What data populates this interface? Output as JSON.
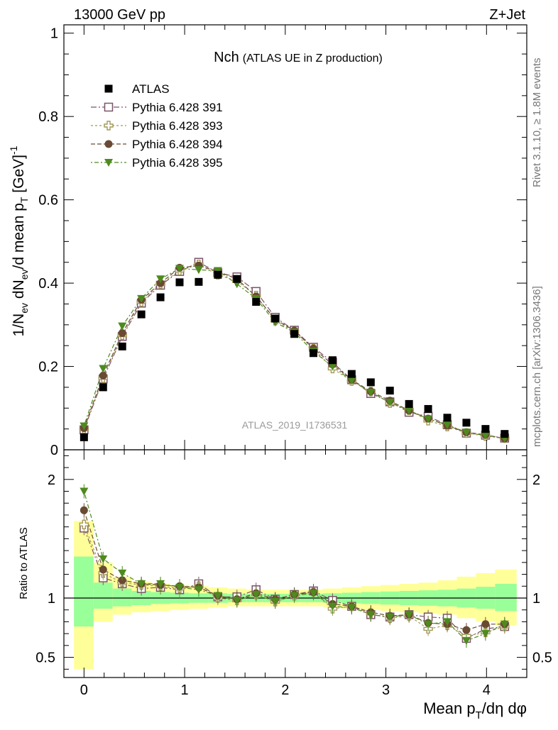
{
  "header": {
    "energy": "13000 GeV pp",
    "process": "Z+Jet",
    "side_rivet": "Rivet 3.1.10, ≥ 1.8M events",
    "side_site": "mcplots.cern.ch [arXiv:1306.3436]"
  },
  "plot_title": {
    "main": "Nch",
    "sub": "(ATLAS UE in Z production)"
  },
  "watermark": "ATLAS_2019_I1736531",
  "colors": {
    "atlas": "#000000",
    "s391": "#7a5468",
    "s393": "#a49858",
    "s394": "#6a4a32",
    "s395": "#4e8a1e",
    "band_yellow": "#ffff99",
    "band_green": "#99ff99"
  },
  "chart_data": [
    {
      "type": "scatter",
      "panel": "main",
      "ylabel": "1/Nev dNev/d mean pT [GeV]^-1",
      "xlim": [
        -0.2,
        4.4
      ],
      "ylim": [
        0,
        1.02
      ],
      "yticks": [
        "0",
        "0.2",
        "0.4",
        "0.6",
        "0.8",
        "1"
      ],
      "x": [
        0,
        0.19,
        0.38,
        0.57,
        0.76,
        0.95,
        1.14,
        1.33,
        1.52,
        1.71,
        1.9,
        2.09,
        2.28,
        2.47,
        2.66,
        2.85,
        3.04,
        3.23,
        3.42,
        3.61,
        3.8,
        3.99,
        4.18
      ],
      "legend": [
        {
          "key": "atlas",
          "name": "ATLAS",
          "marker": "filled-square"
        },
        {
          "key": "s391",
          "name": "Pythia 6.428 391",
          "marker": "open-square"
        },
        {
          "key": "s393",
          "name": "Pythia 6.428 393",
          "marker": "open-cross"
        },
        {
          "key": "s394",
          "name": "Pythia 6.428 394",
          "marker": "filled-circle"
        },
        {
          "key": "s395",
          "name": "Pythia 6.428 395",
          "marker": "filled-triangle-down"
        }
      ],
      "series": [
        {
          "key": "atlas",
          "values": [
            0.03,
            0.15,
            0.248,
            0.325,
            0.366,
            0.402,
            0.403,
            0.42,
            0.41,
            0.355,
            0.315,
            0.278,
            0.232,
            0.215,
            0.182,
            0.162,
            0.142,
            0.11,
            0.098,
            0.077,
            0.065,
            0.05,
            0.038
          ]
        },
        {
          "key": "s391",
          "values": [
            0.048,
            0.17,
            0.272,
            0.352,
            0.395,
            0.428,
            0.45,
            0.425,
            0.415,
            0.38,
            0.318,
            0.287,
            0.246,
            0.21,
            0.168,
            0.135,
            0.115,
            0.09,
            0.08,
            0.06,
            0.04,
            0.035,
            0.028
          ]
        },
        {
          "key": "s393",
          "values": [
            0.05,
            0.172,
            0.275,
            0.355,
            0.398,
            0.43,
            0.445,
            0.42,
            0.405,
            0.37,
            0.31,
            0.284,
            0.243,
            0.195,
            0.165,
            0.14,
            0.112,
            0.095,
            0.07,
            0.056,
            0.04,
            0.033,
            0.028
          ]
        },
        {
          "key": "s394",
          "values": [
            0.052,
            0.178,
            0.28,
            0.36,
            0.4,
            0.437,
            0.442,
            0.428,
            0.41,
            0.368,
            0.313,
            0.286,
            0.243,
            0.205,
            0.168,
            0.14,
            0.118,
            0.094,
            0.075,
            0.058,
            0.042,
            0.036,
            0.027
          ]
        },
        {
          "key": "s395",
          "values": [
            0.057,
            0.195,
            0.297,
            0.363,
            0.41,
            0.435,
            0.432,
            0.43,
            0.398,
            0.363,
            0.306,
            0.282,
            0.236,
            0.2,
            0.166,
            0.138,
            0.114,
            0.094,
            0.074,
            0.06,
            0.042,
            0.034,
            0.027
          ]
        }
      ]
    },
    {
      "type": "scatter",
      "panel": "ratio",
      "ylabel": "Ratio to ATLAS",
      "xlabel": "Mean pT/dη dφ",
      "xlim": [
        -0.2,
        4.4
      ],
      "ylim": [
        0.33,
        2.25
      ],
      "xticks": [
        "0",
        "1",
        "2",
        "3",
        "4"
      ],
      "yticks": [
        "0.5",
        "1",
        "2"
      ],
      "reference_line": 1,
      "bins": [
        -0.1,
        0.095,
        0.285,
        0.475,
        0.665,
        0.855,
        1.045,
        1.235,
        1.425,
        1.615,
        1.805,
        1.995,
        2.185,
        2.375,
        2.565,
        2.755,
        2.945,
        3.135,
        3.325,
        3.515,
        3.705,
        3.895,
        4.085,
        4.3
      ],
      "band_yellow": [
        [
          0.4,
          1.65
        ],
        [
          0.8,
          1.3
        ],
        [
          0.86,
          1.18
        ],
        [
          0.88,
          1.14
        ],
        [
          0.89,
          1.12
        ],
        [
          0.9,
          1.11
        ],
        [
          0.91,
          1.1
        ],
        [
          0.92,
          1.09
        ],
        [
          0.93,
          1.08
        ],
        [
          0.93,
          1.07
        ],
        [
          0.93,
          1.07
        ],
        [
          0.93,
          1.07
        ],
        [
          0.93,
          1.07
        ],
        [
          0.92,
          1.08
        ],
        [
          0.91,
          1.09
        ],
        [
          0.9,
          1.1
        ],
        [
          0.89,
          1.11
        ],
        [
          0.88,
          1.12
        ],
        [
          0.87,
          1.13
        ],
        [
          0.86,
          1.15
        ],
        [
          0.83,
          1.18
        ],
        [
          0.8,
          1.21
        ],
        [
          0.77,
          1.24
        ]
      ],
      "band_green": [
        [
          0.76,
          1.35
        ],
        [
          0.91,
          1.13
        ],
        [
          0.93,
          1.08
        ],
        [
          0.94,
          1.06
        ],
        [
          0.95,
          1.05
        ],
        [
          0.955,
          1.045
        ],
        [
          0.96,
          1.04
        ],
        [
          0.96,
          1.04
        ],
        [
          0.965,
          1.035
        ],
        [
          0.965,
          1.035
        ],
        [
          0.965,
          1.035
        ],
        [
          0.965,
          1.035
        ],
        [
          0.965,
          1.035
        ],
        [
          0.96,
          1.04
        ],
        [
          0.955,
          1.045
        ],
        [
          0.95,
          1.05
        ],
        [
          0.945,
          1.055
        ],
        [
          0.94,
          1.06
        ],
        [
          0.935,
          1.065
        ],
        [
          0.93,
          1.07
        ],
        [
          0.92,
          1.08
        ],
        [
          0.91,
          1.095
        ],
        [
          0.89,
          1.12
        ]
      ],
      "series": [
        {
          "key": "s391",
          "values": [
            1.59,
            1.17,
            1.12,
            1.08,
            1.09,
            1.07,
            1.12,
            1.01,
            1.01,
            1.07,
            0.99,
            1.03,
            1.06,
            0.98,
            0.93,
            0.86,
            0.84,
            0.86,
            0.84,
            0.83,
            0.66,
            0.74,
            0.76
          ]
        },
        {
          "key": "s393",
          "values": [
            1.62,
            1.21,
            1.13,
            1.11,
            1.1,
            1.08,
            1.1,
            1.0,
            0.98,
            1.03,
            0.97,
            1.02,
            1.05,
            0.91,
            0.93,
            0.87,
            0.83,
            0.85,
            0.74,
            0.77,
            0.68,
            0.71,
            0.76
          ]
        },
        {
          "key": "s394",
          "values": [
            1.74,
            1.24,
            1.15,
            1.12,
            1.11,
            1.1,
            1.09,
            1.02,
            0.99,
            1.04,
            0.99,
            1.03,
            1.05,
            0.95,
            0.93,
            0.88,
            0.85,
            0.86,
            0.79,
            0.78,
            0.73,
            0.78,
            0.78
          ]
        },
        {
          "key": "s395",
          "values": [
            1.9,
            1.33,
            1.21,
            1.12,
            1.12,
            1.09,
            1.07,
            1.02,
            0.98,
            1.03,
            0.97,
            1.02,
            1.04,
            0.93,
            0.92,
            0.86,
            0.84,
            0.86,
            0.78,
            0.8,
            0.64,
            0.7,
            0.78
          ]
        }
      ]
    }
  ]
}
